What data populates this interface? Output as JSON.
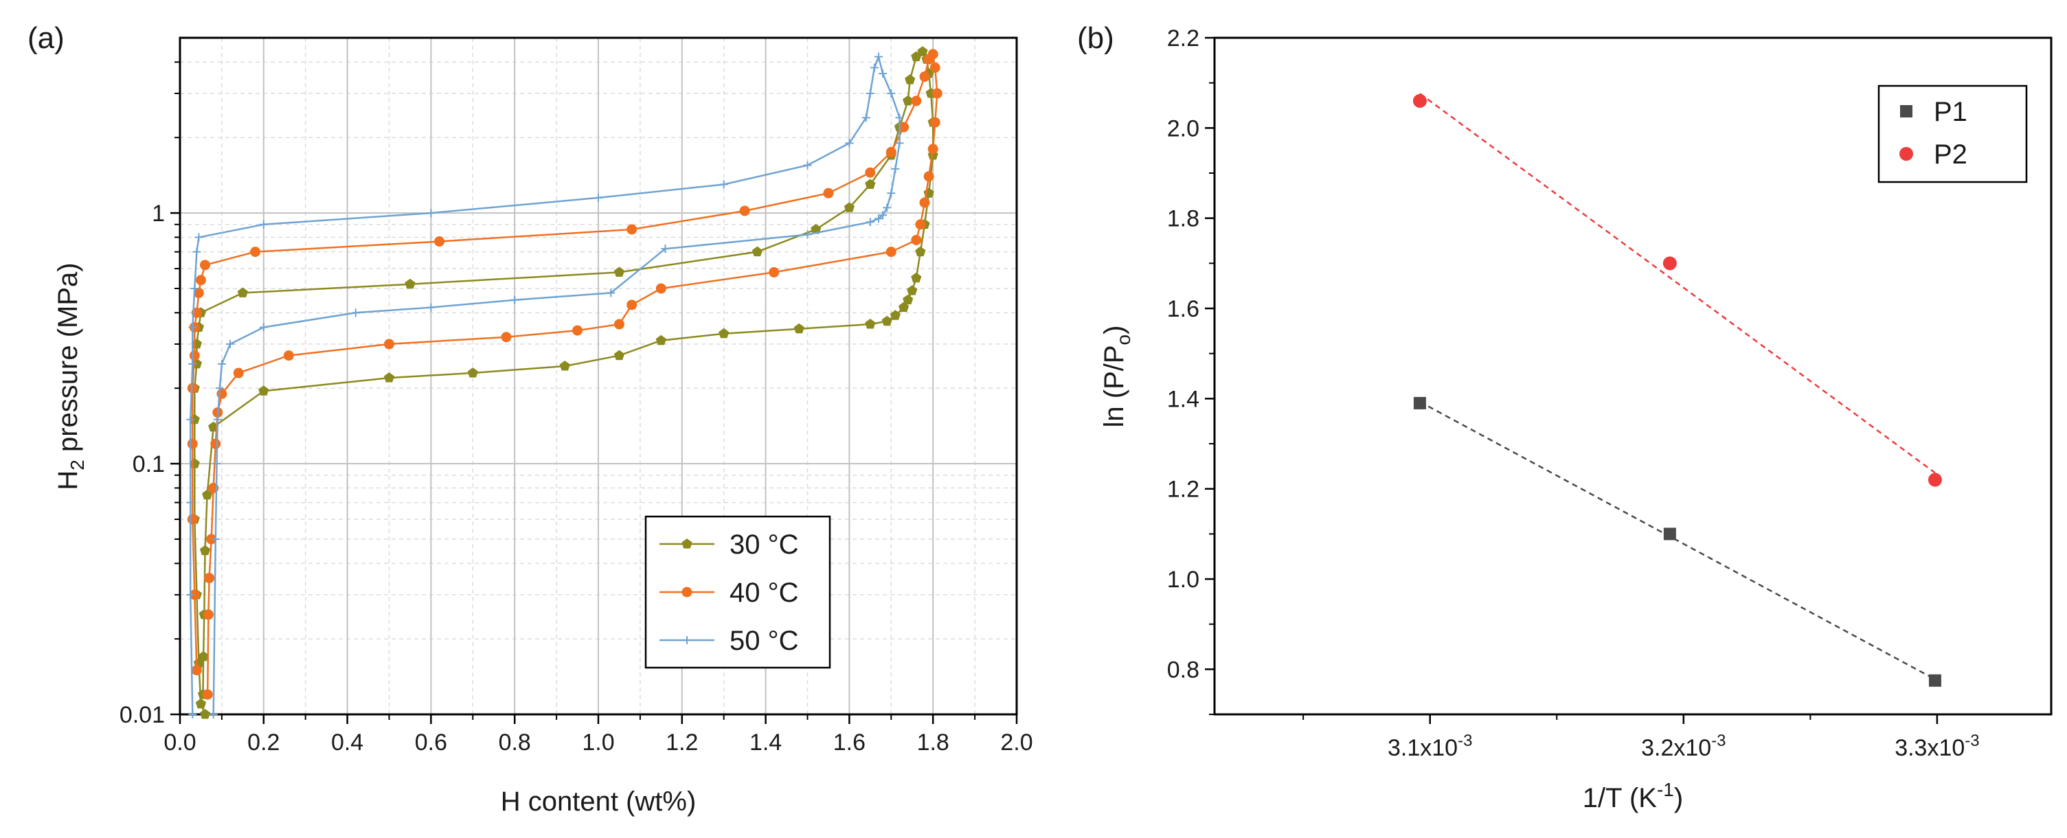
{
  "chart_data": [
    {
      "panel_label": "(a)",
      "type": "line",
      "yscale": "log",
      "xlabel": "H content (wt%)",
      "ylabel_prefix": "H",
      "ylabel_sub": "2",
      "ylabel_suffix": " pressure (MPa)",
      "xlim": [
        0.0,
        2.0
      ],
      "ylim": [
        0.01,
        5.0
      ],
      "x_ticks": [
        0.0,
        0.2,
        0.4,
        0.6,
        0.8,
        1.0,
        1.2,
        1.4,
        1.6,
        1.8,
        2.0
      ],
      "x_tick_labels": [
        "0.0",
        "0.2",
        "0.4",
        "0.6",
        "0.8",
        "1.0",
        "1.2",
        "1.4",
        "1.6",
        "1.8",
        "2.0"
      ],
      "y_ticks": [
        0.01,
        0.1,
        1
      ],
      "y_tick_labels": [
        "0.01",
        "0.1",
        "1"
      ],
      "grid": true,
      "legend_position": "bottom-right",
      "series": [
        {
          "name": "30 °C",
          "color": "#8a8a1e",
          "marker": "pentagon",
          "x": [
            0.06,
            0.05,
            0.045,
            0.04,
            0.035,
            0.035,
            0.035,
            0.035,
            0.04,
            0.04,
            0.045,
            0.05,
            0.15,
            0.55,
            1.05,
            1.38,
            1.52,
            1.6,
            1.65,
            1.7,
            1.72,
            1.74,
            1.745,
            1.76,
            1.775,
            1.785,
            1.79,
            1.795,
            1.8,
            1.8,
            1.79,
            1.78,
            1.77,
            1.76,
            1.75,
            1.74,
            1.73,
            1.71,
            1.69,
            1.65,
            1.48,
            1.3,
            1.15,
            1.05,
            0.92,
            0.7,
            0.5,
            0.2,
            0.08,
            0.065,
            0.06,
            0.058,
            0.056,
            0.055
          ],
          "y": [
            0.01,
            0.011,
            0.016,
            0.03,
            0.06,
            0.1,
            0.15,
            0.2,
            0.25,
            0.3,
            0.35,
            0.4,
            0.48,
            0.52,
            0.58,
            0.7,
            0.86,
            1.05,
            1.3,
            1.7,
            2.2,
            2.8,
            3.4,
            4.2,
            4.4,
            4.1,
            3.6,
            3.0,
            2.3,
            1.7,
            1.2,
            0.9,
            0.7,
            0.55,
            0.49,
            0.45,
            0.42,
            0.39,
            0.37,
            0.36,
            0.345,
            0.33,
            0.31,
            0.27,
            0.245,
            0.23,
            0.22,
            0.195,
            0.14,
            0.075,
            0.045,
            0.025,
            0.017,
            0.012
          ]
        },
        {
          "name": "40 °C",
          "color": "#f07020",
          "marker": "circle",
          "x": [
            0.04,
            0.035,
            0.03,
            0.03,
            0.03,
            0.035,
            0.035,
            0.04,
            0.045,
            0.05,
            0.06,
            0.18,
            0.62,
            1.08,
            1.35,
            1.55,
            1.65,
            1.7,
            1.73,
            1.76,
            1.78,
            1.79,
            1.8,
            1.805,
            1.81,
            1.805,
            1.8,
            1.79,
            1.78,
            1.77,
            1.76,
            1.7,
            1.42,
            1.15,
            1.08,
            1.05,
            0.95,
            0.78,
            0.5,
            0.26,
            0.14,
            0.1,
            0.09,
            0.085,
            0.08,
            0.075,
            0.07,
            0.068,
            0.066
          ],
          "y": [
            0.015,
            0.03,
            0.06,
            0.12,
            0.2,
            0.27,
            0.35,
            0.4,
            0.48,
            0.54,
            0.62,
            0.7,
            0.77,
            0.86,
            1.02,
            1.2,
            1.45,
            1.75,
            2.2,
            2.8,
            3.5,
            4.1,
            4.3,
            3.8,
            3.0,
            2.3,
            1.8,
            1.4,
            1.1,
            0.9,
            0.78,
            0.7,
            0.58,
            0.5,
            0.43,
            0.36,
            0.34,
            0.32,
            0.3,
            0.27,
            0.23,
            0.19,
            0.16,
            0.12,
            0.08,
            0.05,
            0.035,
            0.025,
            0.012
          ]
        },
        {
          "name": "50 °C",
          "color": "#6fa3d2",
          "marker": "plus",
          "x": [
            0.03,
            0.025,
            0.025,
            0.025,
            0.03,
            0.03,
            0.035,
            0.04,
            0.045,
            0.2,
            0.6,
            1.0,
            1.3,
            1.5,
            1.6,
            1.64,
            1.65,
            1.66,
            1.67,
            1.68,
            1.7,
            1.72,
            1.72,
            1.71,
            1.7,
            1.69,
            1.68,
            1.67,
            1.65,
            1.5,
            1.16,
            1.03,
            0.8,
            0.6,
            0.42,
            0.2,
            0.12,
            0.1,
            0.095,
            0.09,
            0.088,
            0.085,
            0.08
          ],
          "y": [
            0.01,
            0.03,
            0.07,
            0.15,
            0.25,
            0.35,
            0.5,
            0.7,
            0.8,
            0.9,
            1.0,
            1.15,
            1.3,
            1.55,
            1.9,
            2.4,
            3.0,
            3.8,
            4.2,
            3.6,
            3.0,
            2.4,
            1.9,
            1.5,
            1.2,
            1.05,
            0.98,
            0.95,
            0.92,
            0.82,
            0.72,
            0.48,
            0.45,
            0.42,
            0.4,
            0.35,
            0.3,
            0.25,
            0.2,
            0.15,
            0.1,
            0.05,
            0.01
          ]
        }
      ]
    },
    {
      "panel_label": "(b)",
      "type": "scatter",
      "xlabel_prefix": "1/T (K",
      "xlabel_sup": "-1",
      "xlabel_suffix": ")",
      "ylabel_prefix": "ln (P/P",
      "ylabel_sub": "o",
      "ylabel_suffix": ")",
      "xlim": [
        0.003015,
        0.003345
      ],
      "ylim": [
        0.7,
        2.2
      ],
      "x_ticks": [
        0.0031,
        0.0032,
        0.0033
      ],
      "x_tick_mantissa": [
        "3.1x10",
        "3.2x10",
        "3.3x10"
      ],
      "x_tick_exponent": "-3",
      "y_ticks": [
        0.8,
        1.0,
        1.2,
        1.4,
        1.6,
        1.8,
        2.0,
        2.2
      ],
      "y_tick_labels": [
        "0.8",
        "1.0",
        "1.2",
        "1.4",
        "1.6",
        "1.8",
        "2.0",
        "2.2"
      ],
      "grid": false,
      "legend_position": "top-right",
      "series": [
        {
          "name": "P1",
          "color": "#4a4a4a",
          "marker": "square",
          "x": [
            0.003096,
            0.0031946,
            0.0032992
          ],
          "y": [
            1.39,
            1.1,
            0.775
          ]
        },
        {
          "name": "P2",
          "color": "#ee3b3b",
          "marker": "circle",
          "x": [
            0.003096,
            0.0031946,
            0.0032992
          ],
          "y": [
            2.06,
            1.7,
            1.22
          ]
        }
      ]
    }
  ]
}
